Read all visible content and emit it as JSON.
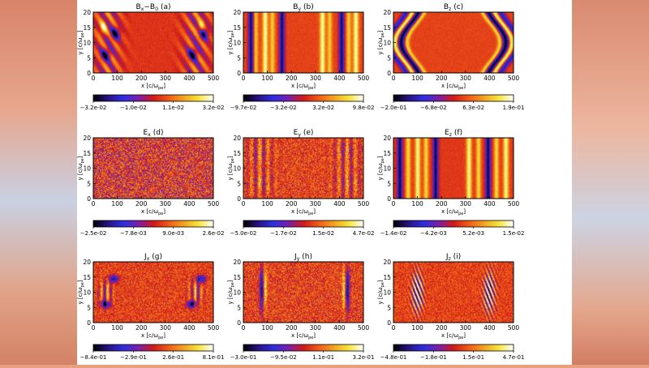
{
  "colors": {
    "colormap": [
      "#000000",
      "#2a1283",
      "#2e2ee0",
      "#7a1fa8",
      "#d01a1a",
      "#ef5a18",
      "#f2a020",
      "#f5e43a",
      "#ffffff"
    ],
    "page_bg": "#e8a082"
  },
  "chart_data": [
    {
      "type": "heatmap",
      "field": "bx",
      "title": "B",
      "title_sub": "x",
      "title_extra": "−B",
      "title_extra_sub": "0",
      "panel_label": "(a)",
      "xlabel": "x [c/ω",
      "xlabel_sub": "pe",
      "xlabel_end": "]",
      "ylabel": "y [c/ω",
      "ylabel_sub": "pe",
      "ylabel_end": "]",
      "xlim": [
        0,
        500
      ],
      "ylim": [
        0,
        20
      ],
      "xticks": [
        "0",
        "100",
        "200",
        "300",
        "400",
        "500"
      ],
      "yticks": [
        "0",
        "5",
        "10",
        "15",
        "20"
      ],
      "colorbar_ticks": [
        "−3.2e-02",
        "−1.0e-02",
        "1.1e-02",
        "3.2e-02"
      ],
      "vmin": -0.032,
      "vmax": 0.032
    },
    {
      "type": "heatmap",
      "field": "by",
      "title": "B",
      "title_sub": "y",
      "title_extra": "",
      "title_extra_sub": "",
      "panel_label": "(b)",
      "xlabel": "x [c/ω",
      "xlabel_sub": "pe",
      "xlabel_end": "]",
      "ylabel": "y [c/ω",
      "ylabel_sub": "pe",
      "ylabel_end": "]",
      "xlim": [
        0,
        500
      ],
      "ylim": [
        0,
        20
      ],
      "xticks": [
        "0",
        "100",
        "200",
        "300",
        "400",
        "500"
      ],
      "yticks": [
        "0",
        "5",
        "10",
        "15",
        "20"
      ],
      "colorbar_ticks": [
        "−9.7e-02",
        "−3.2e-02",
        "3.2e-02",
        "9.8e-02"
      ],
      "vmin": -0.097,
      "vmax": 0.098
    },
    {
      "type": "heatmap",
      "field": "bz",
      "title": "B",
      "title_sub": "z",
      "title_extra": "",
      "title_extra_sub": "",
      "panel_label": "(c)",
      "xlabel": "x [c/ω",
      "xlabel_sub": "pe",
      "xlabel_end": "]",
      "ylabel": "y [c/ω",
      "ylabel_sub": "pe",
      "ylabel_end": "]",
      "xlim": [
        0,
        500
      ],
      "ylim": [
        0,
        20
      ],
      "xticks": [
        "0",
        "100",
        "200",
        "300",
        "400",
        "500"
      ],
      "yticks": [
        "0",
        "5",
        "10",
        "15",
        "20"
      ],
      "colorbar_ticks": [
        "−2.0e-01",
        "−6.8e-02",
        "6.3e-02",
        "1.9e-01"
      ],
      "vmin": -0.2,
      "vmax": 0.19
    },
    {
      "type": "heatmap",
      "field": "ex",
      "title": "E",
      "title_sub": "x",
      "title_extra": "",
      "title_extra_sub": "",
      "panel_label": "(d)",
      "xlabel": "x [c/ω",
      "xlabel_sub": "pe",
      "xlabel_end": "]",
      "ylabel": "y [c/ω",
      "ylabel_sub": "pe",
      "ylabel_end": "]",
      "xlim": [
        0,
        500
      ],
      "ylim": [
        0,
        20
      ],
      "xticks": [
        "0",
        "100",
        "200",
        "300",
        "400",
        "500"
      ],
      "yticks": [
        "0",
        "5",
        "10",
        "15",
        "20"
      ],
      "colorbar_ticks": [
        "−2.5e-02",
        "−7.8e-03",
        "9.0e-03",
        "2.6e-02"
      ],
      "vmin": -0.025,
      "vmax": 0.026
    },
    {
      "type": "heatmap",
      "field": "ey",
      "title": "E",
      "title_sub": "y",
      "title_extra": "",
      "title_extra_sub": "",
      "panel_label": "(e)",
      "xlabel": "x [c/ω",
      "xlabel_sub": "pe",
      "xlabel_end": "]",
      "ylabel": "y [c/ω",
      "ylabel_sub": "pe",
      "ylabel_end": "]",
      "xlim": [
        0,
        500
      ],
      "ylim": [
        0,
        20
      ],
      "xticks": [
        "0",
        "100",
        "200",
        "300",
        "400",
        "500"
      ],
      "yticks": [
        "0",
        "5",
        "10",
        "15",
        "20"
      ],
      "colorbar_ticks": [
        "−5.0e-02",
        "−1.7e-02",
        "1.5e-02",
        "4.7e-02"
      ],
      "vmin": -0.05,
      "vmax": 0.047
    },
    {
      "type": "heatmap",
      "field": "ez",
      "title": "E",
      "title_sub": "z",
      "title_extra": "",
      "title_extra_sub": "",
      "panel_label": "(f)",
      "xlabel": "x [c/ω",
      "xlabel_sub": "pe",
      "xlabel_end": "]",
      "ylabel": "y [c/ω",
      "ylabel_sub": "pe",
      "ylabel_end": "]",
      "xlim": [
        0,
        500
      ],
      "ylim": [
        0,
        20
      ],
      "xticks": [
        "0",
        "100",
        "200",
        "300",
        "400",
        "500"
      ],
      "yticks": [
        "0",
        "5",
        "10",
        "15",
        "20"
      ],
      "colorbar_ticks": [
        "−1.4e-02",
        "−4.2e-03",
        "5.2e-03",
        "1.5e-02"
      ],
      "vmin": -0.014,
      "vmax": 0.015
    },
    {
      "type": "heatmap",
      "field": "jx",
      "title": "J",
      "title_sub": "x",
      "title_extra": "",
      "title_extra_sub": "",
      "panel_label": "(g)",
      "xlabel": "x [c/ω",
      "xlabel_sub": "pe",
      "xlabel_end": "]",
      "ylabel": "y [c/ω",
      "ylabel_sub": "pe",
      "ylabel_end": "]",
      "xlim": [
        0,
        500
      ],
      "ylim": [
        0,
        20
      ],
      "xticks": [
        "0",
        "100",
        "200",
        "300",
        "400",
        "500"
      ],
      "yticks": [
        "0",
        "5",
        "10",
        "15",
        "20"
      ],
      "colorbar_ticks": [
        "−8.4e-01",
        "−2.9e-01",
        "2.6e-01",
        "8.1e-01"
      ],
      "vmin": -0.84,
      "vmax": 0.81
    },
    {
      "type": "heatmap",
      "field": "jy",
      "title": "J",
      "title_sub": "y",
      "title_extra": "",
      "title_extra_sub": "",
      "panel_label": "(h)",
      "xlabel": "x [c/ω",
      "xlabel_sub": "pe",
      "xlabel_end": "]",
      "ylabel": "y [c/ω",
      "ylabel_sub": "pe",
      "ylabel_end": "]",
      "xlim": [
        0,
        500
      ],
      "ylim": [
        0,
        20
      ],
      "xticks": [
        "0",
        "100",
        "200",
        "300",
        "400",
        "500"
      ],
      "yticks": [
        "0",
        "5",
        "10",
        "15",
        "20"
      ],
      "colorbar_ticks": [
        "−3.0e-01",
        "−9.5e-02",
        "1.1e-01",
        "3.2e-01"
      ],
      "vmin": -0.3,
      "vmax": 0.32
    },
    {
      "type": "heatmap",
      "field": "jz",
      "title": "J",
      "title_sub": "z",
      "title_extra": "",
      "title_extra_sub": "",
      "panel_label": "(i)",
      "xlabel": "x [c/ω",
      "xlabel_sub": "pe",
      "xlabel_end": "]",
      "ylabel": "y [c/ω",
      "ylabel_sub": "pe",
      "ylabel_end": "]",
      "xlim": [
        0,
        500
      ],
      "ylim": [
        0,
        20
      ],
      "xticks": [
        "0",
        "100",
        "200",
        "300",
        "400",
        "500"
      ],
      "yticks": [
        "0",
        "5",
        "10",
        "15",
        "20"
      ],
      "colorbar_ticks": [
        "−4.8e-01",
        "−1.8e-01",
        "1.5e-01",
        "4.7e-01"
      ],
      "vmin": -0.48,
      "vmax": 0.47
    }
  ]
}
